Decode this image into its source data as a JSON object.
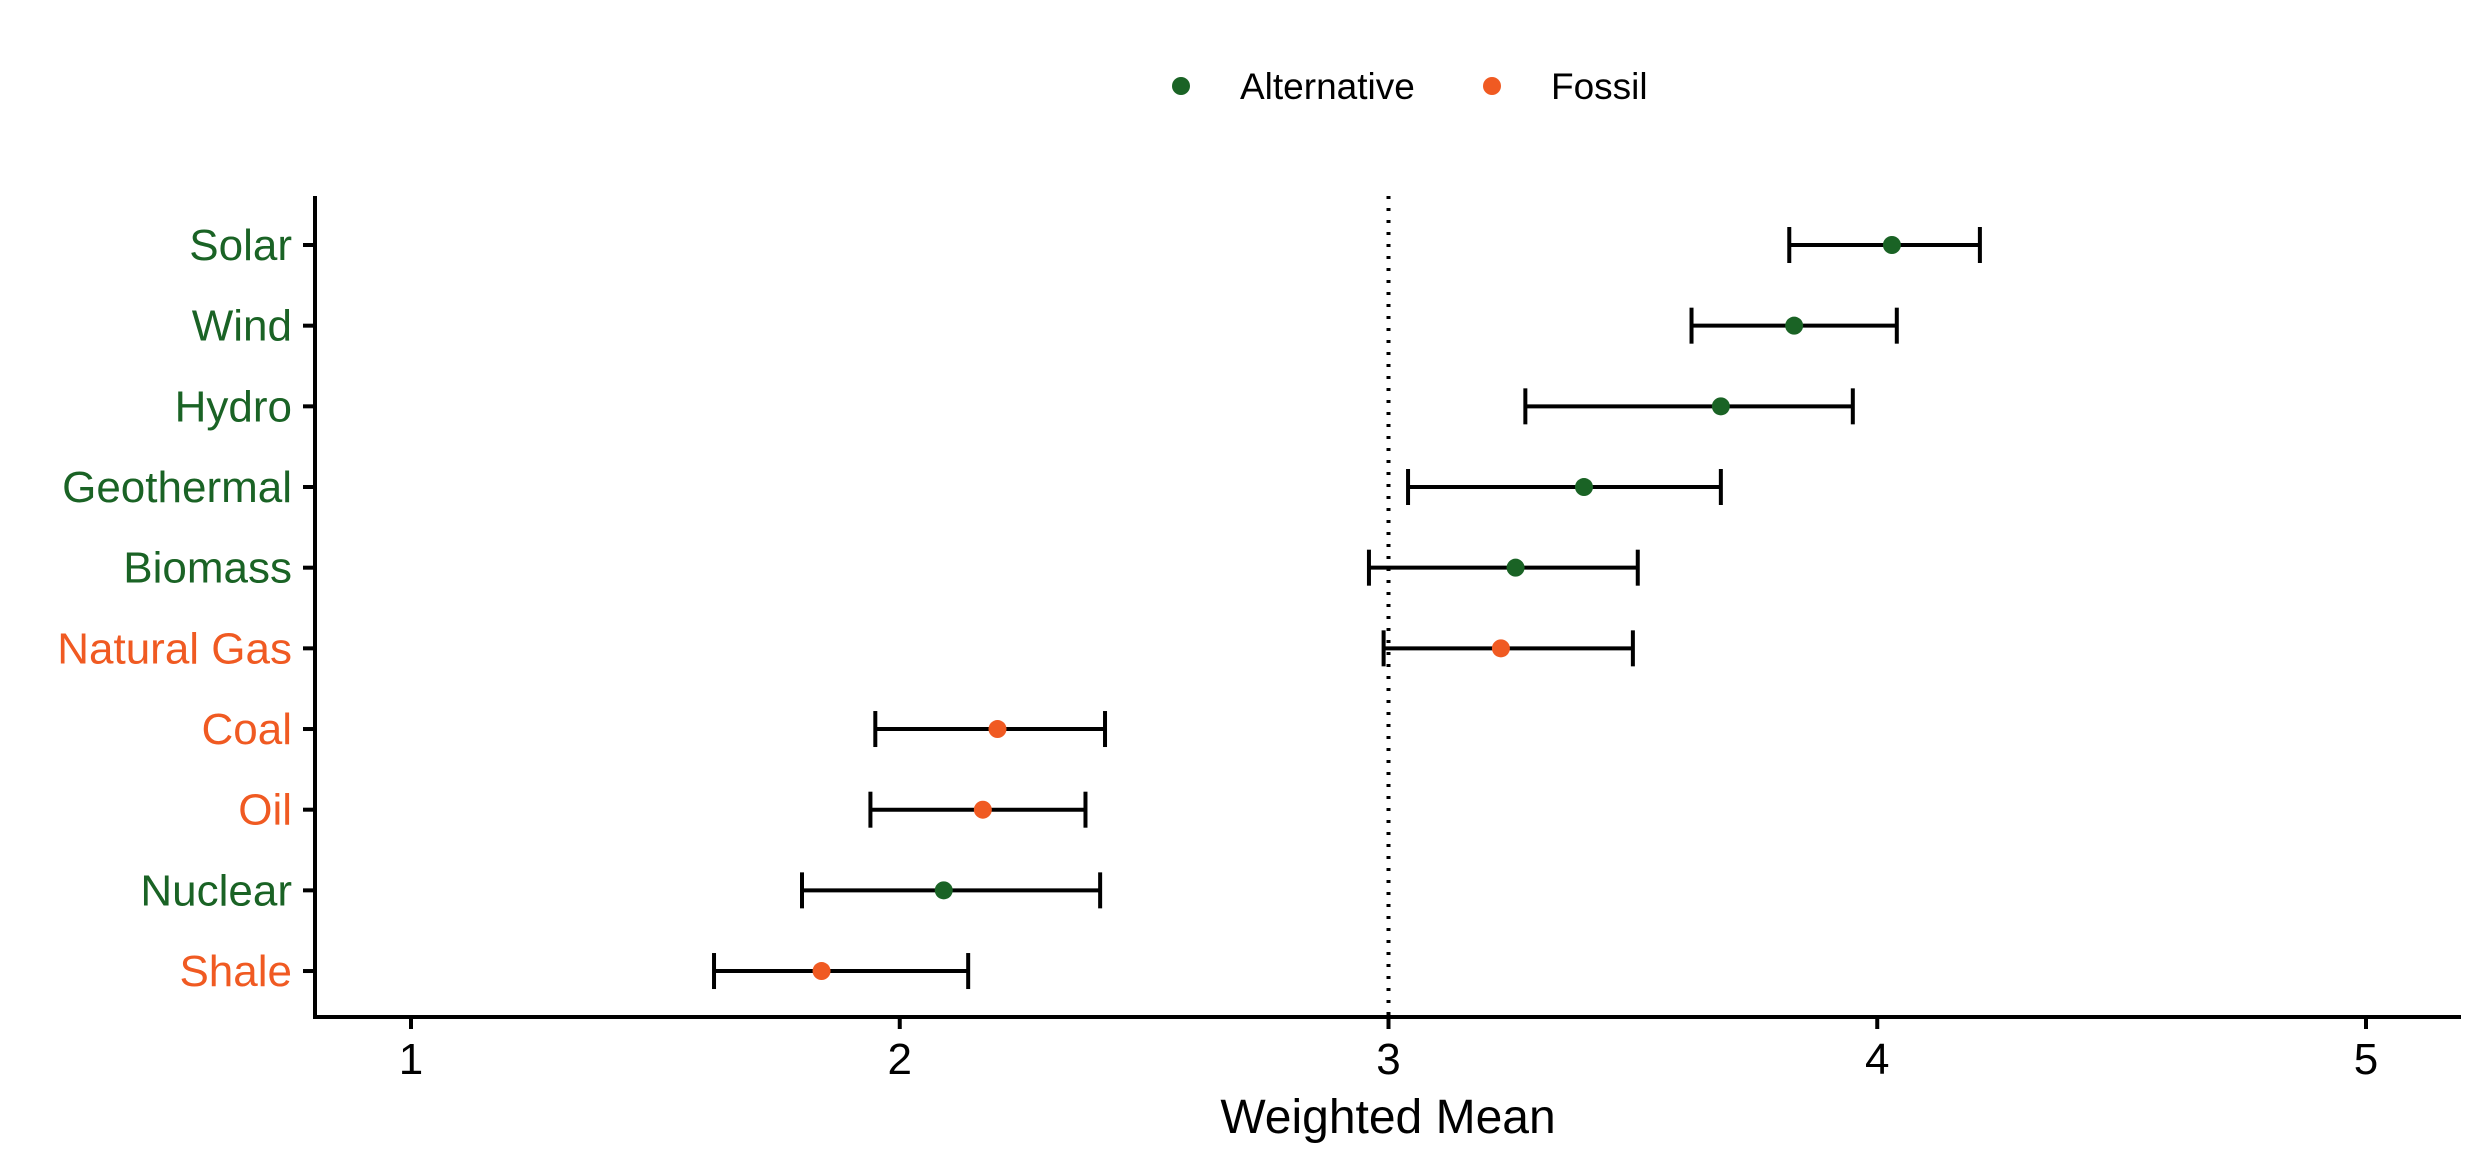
{
  "chart_data": {
    "type": "scatter",
    "subtype": "dot-errorbar",
    "title": "",
    "xlabel": "Weighted Mean",
    "ylabel": "",
    "xlim": [
      0.8,
      5.2
    ],
    "xticks": [
      1,
      2,
      3,
      4,
      5
    ],
    "reference_line": {
      "x": 3,
      "style": "dotted"
    },
    "grid": false,
    "legend": {
      "position": "top",
      "entries": [
        {
          "name": "Alternative",
          "color": "#1a6325"
        },
        {
          "name": "Fossil",
          "color": "#f05a22"
        }
      ]
    },
    "categories": [
      "Solar",
      "Wind",
      "Hydro",
      "Geothermal",
      "Biomass",
      "Natural Gas",
      "Coal",
      "Oil",
      "Nuclear",
      "Shale"
    ],
    "groups": [
      "Alternative",
      "Alternative",
      "Alternative",
      "Alternative",
      "Alternative",
      "Fossil",
      "Fossil",
      "Fossil",
      "Alternative",
      "Fossil"
    ],
    "values": [
      4.03,
      3.83,
      3.68,
      3.4,
      3.26,
      3.23,
      2.2,
      2.17,
      2.09,
      1.84
    ],
    "lower": [
      3.82,
      3.62,
      3.28,
      3.04,
      2.96,
      2.99,
      1.95,
      1.94,
      1.8,
      1.62
    ],
    "upper": [
      4.21,
      4.04,
      3.95,
      3.68,
      3.51,
      3.5,
      2.42,
      2.38,
      2.41,
      2.14
    ]
  }
}
